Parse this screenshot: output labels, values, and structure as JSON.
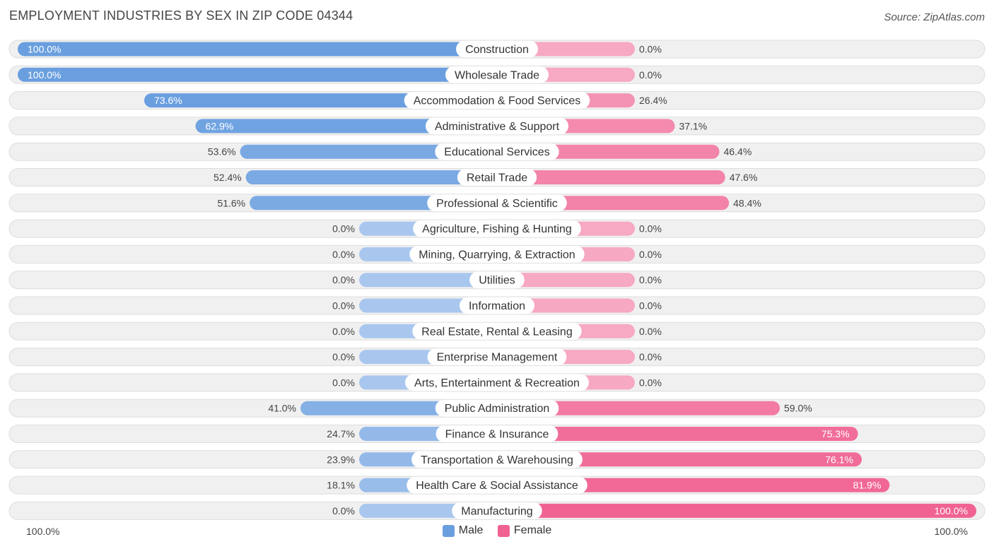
{
  "title": "EMPLOYMENT INDUSTRIES BY SEX IN ZIP CODE 04344",
  "source": "Source: ZipAtlas.com",
  "colors": {
    "male_strong": "#6a9fdf",
    "male_light": "#a9c7ee",
    "female_strong": "#f06292",
    "female_light": "#f7a8c2"
  },
  "legend": {
    "male": "Male",
    "female": "Female"
  },
  "axis": {
    "left": "100.0%",
    "right": "100.0%"
  },
  "chart_data": {
    "type": "bar",
    "orientation": "diverging-horizontal",
    "title": "EMPLOYMENT INDUSTRIES BY SEX IN ZIP CODE 04344",
    "xlim": [
      -100,
      100
    ],
    "categories": [
      "Construction",
      "Wholesale Trade",
      "Accommodation & Food Services",
      "Administrative & Support",
      "Educational Services",
      "Retail Trade",
      "Professional & Scientific",
      "Agriculture, Fishing & Hunting",
      "Mining, Quarrying, & Extraction",
      "Utilities",
      "Information",
      "Real Estate, Rental & Leasing",
      "Enterprise Management",
      "Arts, Entertainment & Recreation",
      "Public Administration",
      "Finance & Insurance",
      "Transportation & Warehousing",
      "Health Care & Social Assistance",
      "Manufacturing"
    ],
    "series": [
      {
        "name": "Male",
        "values": [
          100.0,
          100.0,
          73.6,
          62.9,
          53.6,
          52.4,
          51.6,
          0.0,
          0.0,
          0.0,
          0.0,
          0.0,
          0.0,
          0.0,
          41.0,
          24.7,
          23.9,
          18.1,
          0.0
        ],
        "labels": [
          "100.0%",
          "100.0%",
          "73.6%",
          "62.9%",
          "53.6%",
          "52.4%",
          "51.6%",
          "0.0%",
          "0.0%",
          "0.0%",
          "0.0%",
          "0.0%",
          "0.0%",
          "0.0%",
          "41.0%",
          "24.7%",
          "23.9%",
          "18.1%",
          "0.0%"
        ]
      },
      {
        "name": "Female",
        "values": [
          0.0,
          0.0,
          26.4,
          37.1,
          46.4,
          47.6,
          48.4,
          0.0,
          0.0,
          0.0,
          0.0,
          0.0,
          0.0,
          0.0,
          59.0,
          75.3,
          76.1,
          81.9,
          100.0
        ],
        "labels": [
          "0.0%",
          "0.0%",
          "26.4%",
          "37.1%",
          "46.4%",
          "47.6%",
          "48.4%",
          "0.0%",
          "0.0%",
          "0.0%",
          "0.0%",
          "0.0%",
          "0.0%",
          "0.0%",
          "59.0%",
          "75.3%",
          "76.1%",
          "81.9%",
          "100.0%"
        ]
      }
    ]
  }
}
